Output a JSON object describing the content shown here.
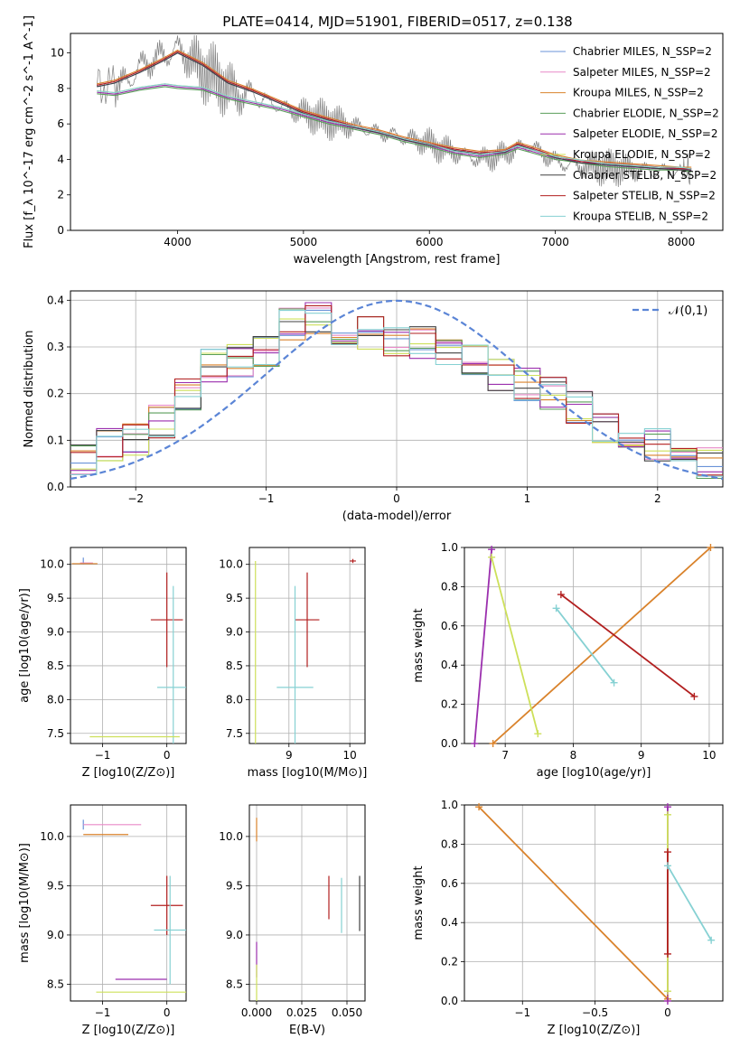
{
  "figure_title": "PLATE=0414, MJD=51901, FIBERID=0517, z=0.138",
  "chart_data": [
    {
      "id": "spectrum",
      "type": "line",
      "xlabel": "wavelength [Angstrom, rest frame]",
      "ylabel": "Flux [f_λ 10^-17 erg cm^-2 s^-1 A^-1]",
      "xlim": [
        3150,
        8330
      ],
      "ylim": [
        0,
        11.1
      ],
      "xticks": [
        4000,
        5000,
        6000,
        7000,
        8000
      ],
      "yticks": [
        0,
        2,
        4,
        6,
        8,
        10
      ],
      "grid": false,
      "legend": "top-right",
      "data_series": {
        "name": "data",
        "color": "#808080",
        "x": [
          3360,
          3500,
          3600,
          3700,
          3800,
          3900,
          4000,
          4100,
          4200,
          4300,
          4400,
          4500,
          4600,
          4700,
          4800,
          4900,
          5000,
          5100,
          5200,
          5300,
          5400,
          5500,
          5600,
          5700,
          5800,
          5900,
          6000,
          6100,
          6200,
          6300,
          6400,
          6500,
          6600,
          6700,
          6800,
          6900,
          7000,
          7100,
          7200,
          7300,
          7400,
          7500,
          7600,
          7700,
          7800,
          7900,
          8000,
          8080
        ],
        "y": [
          8.3,
          8.1,
          8.4,
          9.2,
          9.6,
          9.9,
          10.2,
          9.7,
          9.0,
          8.6,
          8.0,
          7.6,
          7.7,
          7.3,
          7.0,
          6.8,
          6.6,
          6.4,
          6.2,
          6.0,
          5.9,
          5.7,
          5.5,
          5.4,
          5.2,
          5.1,
          4.9,
          4.6,
          4.4,
          4.2,
          4.0,
          4.1,
          4.3,
          4.6,
          4.8,
          4.3,
          3.9,
          3.7,
          3.6,
          3.6,
          3.5,
          3.5,
          3.4,
          3.4,
          3.3,
          3.4,
          3.3,
          3.2
        ]
      },
      "models_x": [
        3360,
        3500,
        3700,
        3900,
        4000,
        4200,
        4400,
        4600,
        4800,
        5000,
        5200,
        5400,
        5600,
        5800,
        6000,
        6200,
        6400,
        6600,
        6700,
        6800,
        7000,
        7200,
        7400,
        7600,
        7800,
        8000,
        8080
      ],
      "series": [
        {
          "name": "Chabrier MILES, N_SSP=2",
          "color": "#6a93d8",
          "group": "A"
        },
        {
          "name": "Salpeter MILES, N_SSP=2",
          "color": "#e889c7",
          "group": "A"
        },
        {
          "name": "Kroupa MILES, N_SSP=2",
          "color": "#d9822b",
          "group": "A"
        },
        {
          "name": "Chabrier ELODIE, N_SSP=2",
          "color": "#5a9e5a",
          "group": "B"
        },
        {
          "name": "Salpeter ELODIE, N_SSP=2",
          "color": "#9b2fae",
          "group": "B"
        },
        {
          "name": "Kroupa ELODIE, N_SSP=2",
          "color": "#cde05a",
          "group": "B"
        },
        {
          "name": "Chabrier STELIB, N_SSP=2",
          "color": "#404040",
          "group": "A"
        },
        {
          "name": "Salpeter STELIB, N_SSP=2",
          "color": "#b21f1f",
          "group": "A"
        },
        {
          "name": "Kroupa STELIB, N_SSP=2",
          "color": "#86d1d3",
          "group": "B"
        }
      ],
      "model_profiles": {
        "A": [
          8.1,
          8.3,
          8.9,
          9.6,
          10.0,
          9.3,
          8.3,
          7.8,
          7.2,
          6.6,
          6.2,
          5.8,
          5.5,
          5.1,
          4.8,
          4.5,
          4.3,
          4.4,
          4.8,
          4.6,
          4.1,
          3.8,
          3.7,
          3.6,
          3.5,
          3.4,
          3.4
        ],
        "B": [
          7.7,
          7.6,
          7.9,
          8.1,
          8.0,
          7.9,
          7.4,
          7.1,
          6.8,
          6.4,
          6.0,
          5.7,
          5.4,
          5.0,
          4.7,
          4.3,
          4.1,
          4.3,
          4.6,
          4.4,
          4.0,
          3.8,
          3.6,
          3.5,
          3.4,
          3.4,
          3.3
        ]
      }
    },
    {
      "id": "residuals",
      "type": "line",
      "xlabel": "(data-model)/error",
      "ylabel": "Normed distribution",
      "xlim": [
        -2.5,
        2.5
      ],
      "ylim": [
        0,
        0.42
      ],
      "xticks": [
        -2,
        -1,
        0,
        1,
        2
      ],
      "yticks": [
        0.0,
        0.1,
        0.2,
        0.3,
        0.4
      ],
      "grid": true,
      "legend": "top-right",
      "reference": {
        "name": "𝒩(0,1)",
        "color": "#5b85d6"
      },
      "histogram": {
        "x": [
          -2.5,
          -2.3,
          -2.1,
          -1.9,
          -1.7,
          -1.5,
          -1.3,
          -1.1,
          -0.9,
          -0.7,
          -0.5,
          -0.3,
          -0.1,
          0.1,
          0.3,
          0.5,
          0.7,
          0.9,
          1.1,
          1.3,
          1.5,
          1.7,
          1.9,
          2.1,
          2.3,
          2.5
        ],
        "y": [
          0.06,
          0.09,
          0.1,
          0.14,
          0.2,
          0.26,
          0.27,
          0.29,
          0.35,
          0.36,
          0.34,
          0.33,
          0.31,
          0.31,
          0.28,
          0.27,
          0.24,
          0.22,
          0.2,
          0.17,
          0.13,
          0.12,
          0.09,
          0.07,
          0.05,
          0.04
        ]
      }
    },
    {
      "id": "z_age",
      "type": "scatter",
      "xlabel": "Z [log10(Z/Z⊙)]",
      "ylabel": "age [log10(age/yr)]",
      "xlim": [
        -1.5,
        0.3
      ],
      "ylim": [
        7.35,
        10.25
      ],
      "xticks": [
        -1,
        0
      ],
      "yticks": [
        7.5,
        8.0,
        8.5,
        9.0,
        9.5,
        10.0
      ],
      "grid": true,
      "points": [
        {
          "x": -1.3,
          "y": 10.05,
          "xerr": 0.0,
          "yerr": 0.05,
          "color": "#6a93d8"
        },
        {
          "x": -1.25,
          "y": 10.02,
          "xerr": 0.1,
          "yerr": 0.0,
          "color": "#e889c7"
        },
        {
          "x": -1.28,
          "y": 10.01,
          "xerr": 0.2,
          "yerr": 0.0,
          "color": "#d9822b"
        },
        {
          "x": 0.0,
          "y": 9.18,
          "xerr": 0.25,
          "yerr": 0.7,
          "color": "#b21f1f"
        },
        {
          "x": 0.1,
          "y": 8.18,
          "xerr": 0.25,
          "yerr": 1.5,
          "color": "#86d1d3"
        },
        {
          "x": -0.5,
          "y": 7.45,
          "xerr": 0.7,
          "yerr": 0.0,
          "color": "#cde05a"
        }
      ]
    },
    {
      "id": "mass_age",
      "type": "scatter",
      "xlabel": "mass [log10(M/M⊙)]",
      "ylabel": "",
      "xlim": [
        8.35,
        10.25
      ],
      "ylim": [
        7.35,
        10.25
      ],
      "xticks": [
        9,
        10
      ],
      "yticks": [
        7.5,
        8.0,
        8.5,
        9.0,
        9.5,
        10.0
      ],
      "grid": true,
      "points": [
        {
          "x": 10.05,
          "y": 10.05,
          "xerr": 0.05,
          "yerr": 0.03,
          "color": "#b21f1f"
        },
        {
          "x": 9.3,
          "y": 9.18,
          "xerr": 0.2,
          "yerr": 0.7,
          "color": "#b21f1f"
        },
        {
          "x": 9.1,
          "y": 8.18,
          "xerr": 0.3,
          "yerr": 1.5,
          "color": "#86d1d3"
        },
        {
          "x": 8.45,
          "y": 7.45,
          "xerr": 0.0,
          "yerr": 2.6,
          "color": "#cde05a"
        }
      ]
    },
    {
      "id": "age_weight",
      "type": "line",
      "xlabel": "age [log10(age/yr)]",
      "ylabel": "mass weight",
      "xlim": [
        6.4,
        10.2
      ],
      "ylim": [
        0,
        1.0
      ],
      "xticks": [
        7,
        8,
        9,
        10
      ],
      "yticks": [
        0.0,
        0.2,
        0.4,
        0.6,
        0.8,
        1.0
      ],
      "grid": true,
      "series": [
        {
          "color": "#d9822b",
          "x": [
            6.82,
            10.02
          ],
          "y": [
            0.0,
            1.0
          ]
        },
        {
          "color": "#9b2fae",
          "x": [
            6.55,
            6.8
          ],
          "y": [
            0.0,
            0.99
          ]
        },
        {
          "color": "#cde05a",
          "x": [
            6.8,
            7.48
          ],
          "y": [
            0.95,
            0.05
          ]
        },
        {
          "color": "#86d1d3",
          "x": [
            7.75,
            8.6
          ],
          "y": [
            0.69,
            0.31
          ]
        },
        {
          "color": "#b21f1f",
          "x": [
            7.82,
            9.78
          ],
          "y": [
            0.76,
            0.24
          ]
        }
      ]
    },
    {
      "id": "z_mass",
      "type": "scatter",
      "xlabel": "Z [log10(Z/Z⊙)]",
      "ylabel": "mass [log10(M/M⊙)]",
      "xlim": [
        -1.5,
        0.3
      ],
      "ylim": [
        8.33,
        10.32
      ],
      "xticks": [
        -1,
        0
      ],
      "yticks": [
        8.5,
        9.0,
        9.5,
        10.0
      ],
      "grid": true,
      "points": [
        {
          "x": -1.3,
          "y": 10.12,
          "xerr": 0.0,
          "yerr": 0.05,
          "color": "#6a93d8"
        },
        {
          "x": -0.85,
          "y": 10.12,
          "xerr": 0.45,
          "yerr": 0.0,
          "color": "#e889c7"
        },
        {
          "x": -0.95,
          "y": 10.02,
          "xerr": 0.35,
          "yerr": 0.0,
          "color": "#d9822b"
        },
        {
          "x": 0.0,
          "y": 9.3,
          "xerr": 0.25,
          "yerr": 0.3,
          "color": "#b21f1f"
        },
        {
          "x": 0.05,
          "y": 9.05,
          "xerr": 0.25,
          "yerr": 0.55,
          "color": "#86d1d3"
        },
        {
          "x": -0.4,
          "y": 8.55,
          "xerr": 0.4,
          "yerr": 0.0,
          "color": "#9b2fae"
        },
        {
          "x": -0.4,
          "y": 8.42,
          "xerr": 0.7,
          "yerr": 0.0,
          "color": "#cde05a"
        }
      ]
    },
    {
      "id": "ebv_mass",
      "type": "scatter",
      "xlabel": "E(B-V)",
      "ylabel": "",
      "xlim": [
        -0.004,
        0.06
      ],
      "ylim": [
        8.33,
        10.32
      ],
      "xticks": [
        0.0,
        0.025,
        0.05
      ],
      "ytick_labels": [
        "0.000",
        "0.025",
        "0.050"
      ],
      "yticks": [
        8.5,
        9.0,
        9.5,
        10.0
      ],
      "grid": true,
      "points": [
        {
          "x": 0.0,
          "y": 10.07,
          "yerr": 0.12,
          "color": "#d9822b"
        },
        {
          "x": 0.0,
          "y": 8.75,
          "yerr": 0.18,
          "color": "#9b2fae"
        },
        {
          "x": 0.0,
          "y": 8.45,
          "yerr": 0.25,
          "color": "#cde05a"
        },
        {
          "x": 0.04,
          "y": 9.38,
          "yerr": 0.22,
          "color": "#b21f1f"
        },
        {
          "x": 0.047,
          "y": 9.3,
          "yerr": 0.28,
          "color": "#86d1d3"
        },
        {
          "x": 0.057,
          "y": 9.32,
          "yerr": 0.28,
          "color": "#404040"
        }
      ]
    },
    {
      "id": "z_weight",
      "type": "line",
      "xlabel": "Z [log10(Z/Z⊙)]",
      "ylabel": "mass weight",
      "xlim": [
        -1.4,
        0.38
      ],
      "ylim": [
        0,
        1.0
      ],
      "xticks": [
        -1.0,
        -0.5,
        0.0
      ],
      "yticks": [
        0.0,
        0.2,
        0.4,
        0.6,
        0.8,
        1.0
      ],
      "grid": true,
      "series": [
        {
          "color": "#d9822b",
          "x": [
            -1.3,
            0.0
          ],
          "y": [
            0.99,
            0.01
          ]
        },
        {
          "color": "#9b2fae",
          "x": [
            0.0,
            0.0
          ],
          "y": [
            0.0,
            0.99
          ]
        },
        {
          "color": "#cde05a",
          "x": [
            0.0,
            0.0
          ],
          "y": [
            0.05,
            0.95
          ]
        },
        {
          "color": "#b21f1f",
          "x": [
            0.0,
            0.0
          ],
          "y": [
            0.24,
            0.76
          ]
        },
        {
          "color": "#86d1d3",
          "x": [
            0.0,
            0.3
          ],
          "y": [
            0.69,
            0.31
          ]
        }
      ]
    }
  ]
}
